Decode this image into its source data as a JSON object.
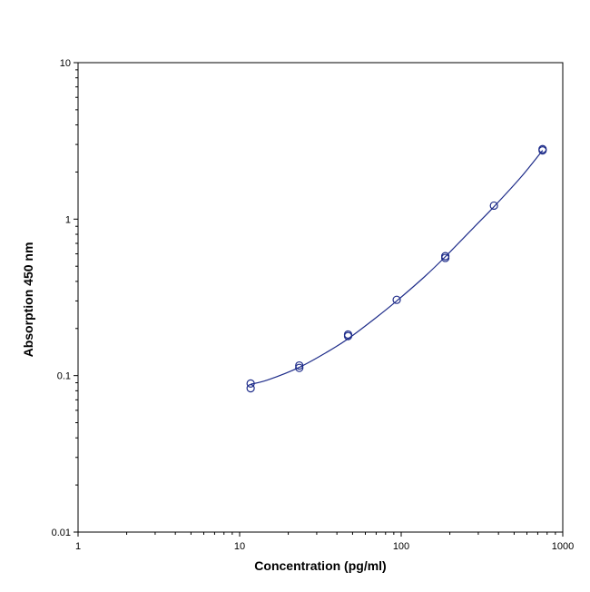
{
  "chart_data": {
    "type": "scatter",
    "xlabel": "Concentration (pg/ml)",
    "ylabel": "Absorption 450 nm",
    "x_scale": "log",
    "y_scale": "log",
    "xlim": [
      1,
      1000
    ],
    "ylim": [
      0.01,
      10
    ],
    "x_ticks": [
      "1",
      "10",
      "100",
      "1000"
    ],
    "y_ticks": [
      "0.01",
      "0.1",
      "1",
      "10"
    ],
    "grid": false,
    "series": [
      {
        "kind": "points",
        "marker": "open-circle",
        "color": "#1f2d8a",
        "points": [
          {
            "x": 11.7,
            "y": 0.089
          },
          {
            "x": 11.7,
            "y": 0.083
          },
          {
            "x": 23.4,
            "y": 0.116
          },
          {
            "x": 23.4,
            "y": 0.112
          },
          {
            "x": 46.9,
            "y": 0.183
          },
          {
            "x": 46.9,
            "y": 0.179
          },
          {
            "x": 93.8,
            "y": 0.305
          },
          {
            "x": 187.5,
            "y": 0.58
          },
          {
            "x": 187.5,
            "y": 0.565
          },
          {
            "x": 375,
            "y": 1.22
          },
          {
            "x": 750,
            "y": 2.8
          },
          {
            "x": 750,
            "y": 2.75
          }
        ]
      },
      {
        "kind": "fit-curve",
        "color": "#1f2d8a",
        "points": [
          {
            "x": 11.7,
            "y": 0.088
          },
          {
            "x": 15,
            "y": 0.094
          },
          {
            "x": 23.4,
            "y": 0.113
          },
          {
            "x": 35,
            "y": 0.142
          },
          {
            "x": 46.9,
            "y": 0.172
          },
          {
            "x": 70,
            "y": 0.235
          },
          {
            "x": 93.8,
            "y": 0.3
          },
          {
            "x": 140,
            "y": 0.43
          },
          {
            "x": 187.5,
            "y": 0.575
          },
          {
            "x": 280,
            "y": 0.88
          },
          {
            "x": 375,
            "y": 1.2
          },
          {
            "x": 550,
            "y": 1.85
          },
          {
            "x": 750,
            "y": 2.75
          }
        ]
      }
    ]
  }
}
